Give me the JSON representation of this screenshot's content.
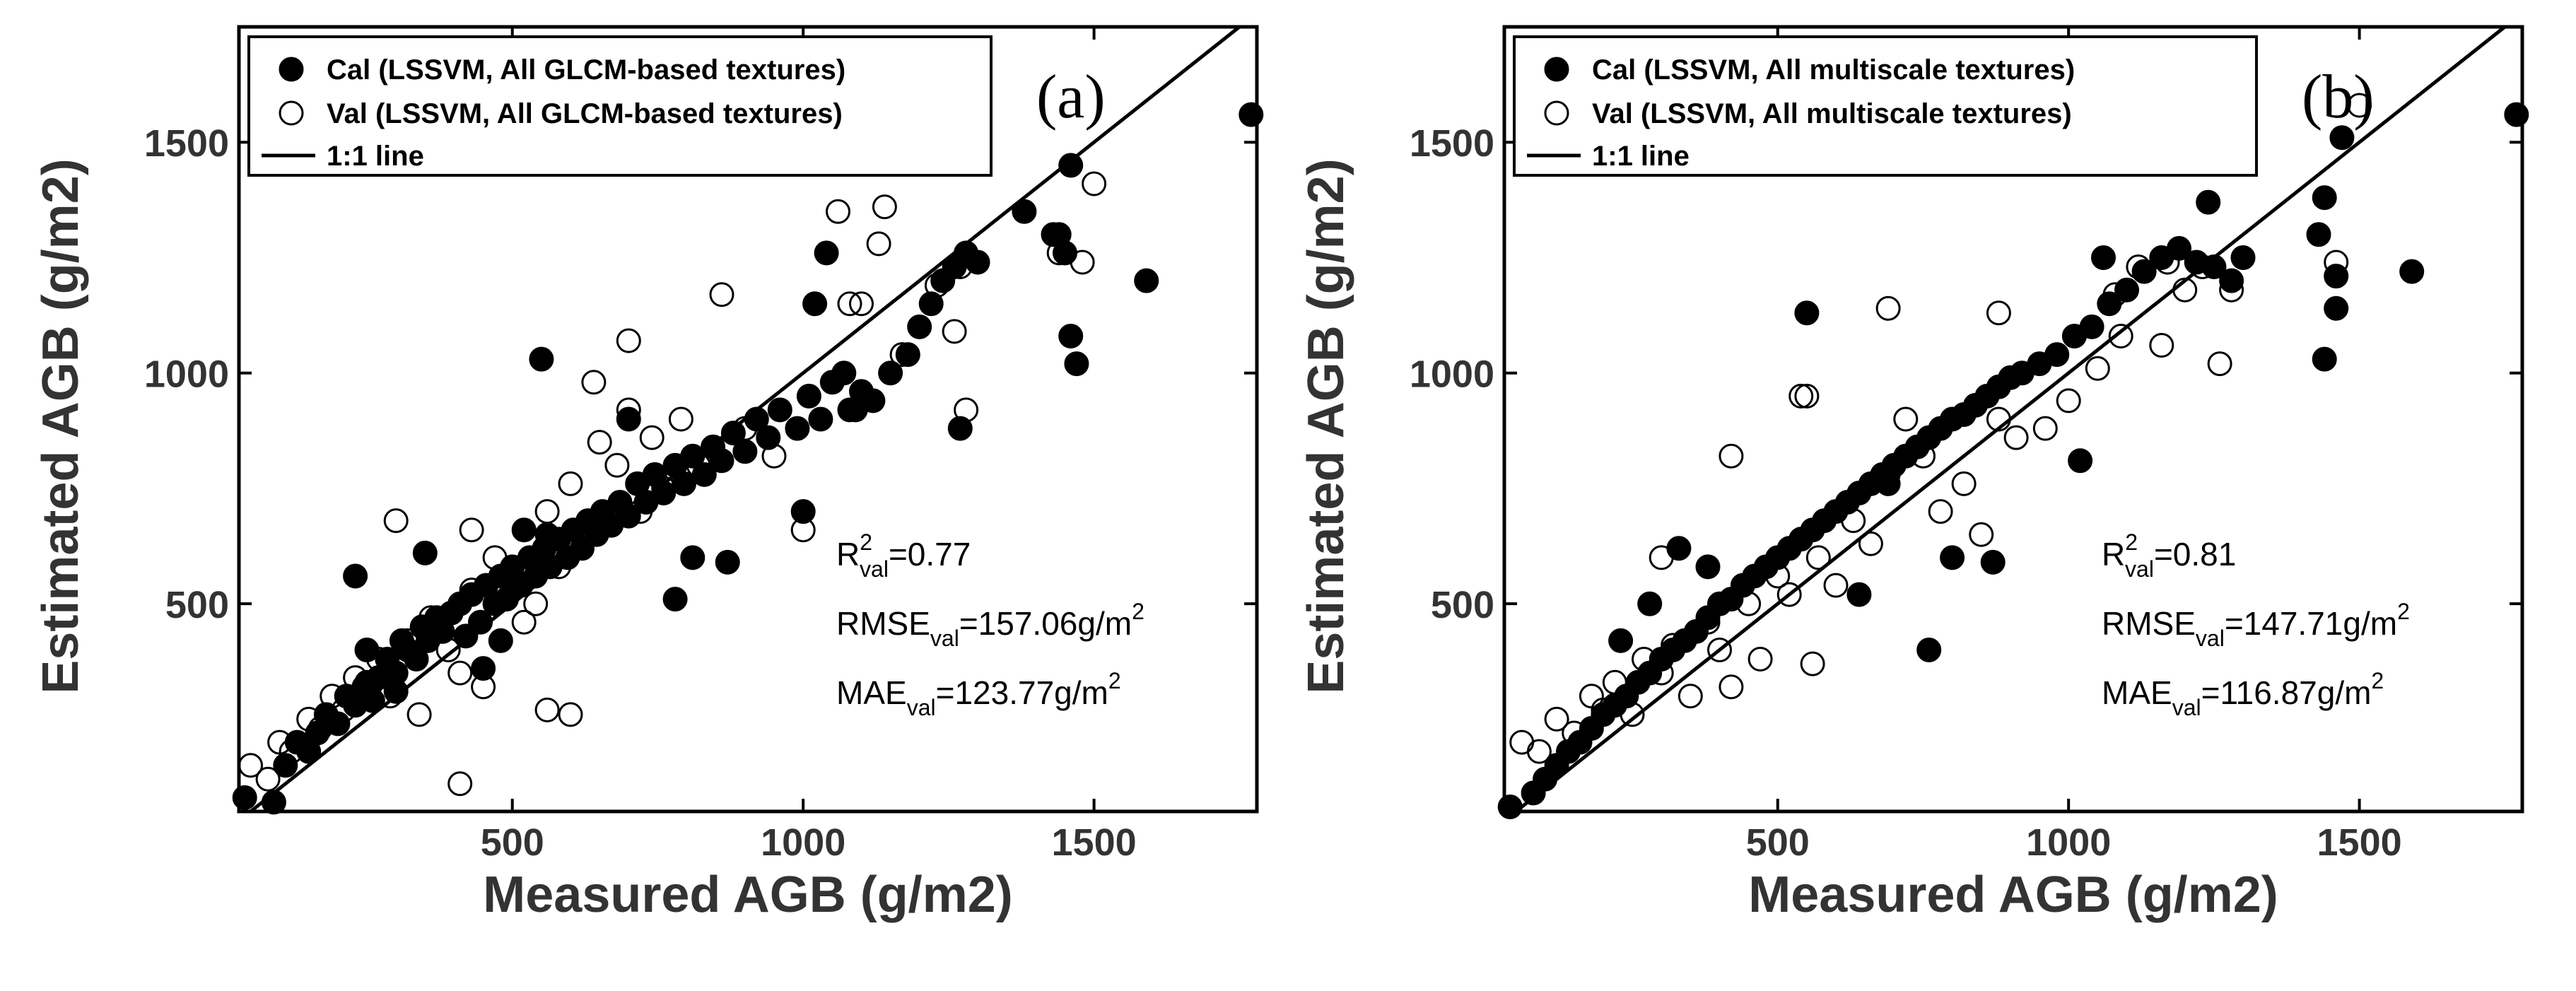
{
  "chart_data": [
    {
      "type": "scatter",
      "panel_label": "(a)",
      "xlabel": "Measured AGB (g/m2)",
      "ylabel": "Estimated AGB (g/m2)",
      "xlim": [
        30,
        1780
      ],
      "ylim": [
        50,
        1750
      ],
      "xticks": [
        "500",
        "1000",
        "1500"
      ],
      "yticks": [
        "500",
        "1000",
        "1500"
      ],
      "legend": {
        "position": "top-left",
        "entries": [
          "Cal (LSSVM, All GLCM-based textures)",
          "Val (LSSVM, All GLCM-based textures)",
          "1:1 line"
        ]
      },
      "stats": {
        "r2_label": "R",
        "r2_value": "=0.77",
        "rmse_label": "RMSE",
        "rmse_value": "=157.06g/m",
        "mae_label": "MAE",
        "mae_value": "=123.77g/m",
        "sub": "val",
        "sup_r": "2",
        "sup_unit": "2"
      },
      "series": [
        {
          "name": "Cal",
          "marker": "filled",
          "x": [
            40,
            90,
            110,
            130,
            150,
            165,
            180,
            200,
            215,
            230,
            245,
            260,
            270,
            285,
            300,
            310,
            320,
            335,
            345,
            355,
            370,
            380,
            395,
            410,
            420,
            430,
            445,
            455,
            470,
            480,
            490,
            500,
            515,
            530,
            540,
            555,
            565,
            580,
            595,
            605,
            620,
            630,
            645,
            655,
            670,
            685,
            700,
            715,
            730,
            745,
            760,
            780,
            795,
            810,
            830,
            845,
            860,
            880,
            900,
            920,
            940,
            960,
            990,
            1010,
            1030,
            1050,
            1080,
            1100,
            1120,
            1150,
            1180,
            1200,
            1220,
            1240,
            1260,
            1280,
            1300,
            1430,
            1450,
            1460,
            1470,
            1590,
            1770,
            250,
            230,
            300,
            350,
            250,
            450,
            480,
            520,
            550,
            560,
            700,
            780,
            810,
            870,
            1000,
            1020,
            1040,
            1070,
            1090,
            1270,
            1380,
            1440,
            1460
          ],
          "y": [
            80,
            70,
            150,
            200,
            180,
            220,
            260,
            240,
            300,
            280,
            320,
            290,
            340,
            380,
            350,
            420,
            400,
            380,
            450,
            420,
            470,
            440,
            480,
            500,
            430,
            520,
            460,
            540,
            500,
            560,
            510,
            580,
            540,
            600,
            560,
            620,
            580,
            640,
            600,
            660,
            620,
            680,
            650,
            700,
            670,
            720,
            690,
            760,
            720,
            780,
            740,
            800,
            760,
            820,
            780,
            840,
            810,
            870,
            830,
            900,
            860,
            920,
            880,
            950,
            900,
            980,
            920,
            960,
            940,
            1000,
            1040,
            1100,
            1150,
            1200,
            1230,
            1260,
            1240,
            1300,
            1260,
            1080,
            1020,
            1200,
            1560,
            330,
            560,
            310,
            610,
            400,
            360,
            420,
            660,
            1030,
            650,
            900,
            510,
            600,
            590,
            700,
            1150,
            1260,
            1000,
            920,
            880,
            1350,
            1300,
            1450
          ]
        },
        {
          "name": "Val",
          "marker": "open",
          "x": [
            50,
            80,
            100,
            120,
            150,
            170,
            190,
            210,
            230,
            250,
            270,
            290,
            320,
            340,
            360,
            390,
            410,
            430,
            450,
            470,
            500,
            520,
            540,
            560,
            580,
            600,
            620,
            650,
            680,
            700,
            720,
            740,
            760,
            790,
            820,
            860,
            900,
            950,
            1000,
            1060,
            1100,
            1140,
            1170,
            1230,
            1260,
            1280,
            1440,
            1480,
            1500,
            300,
            410,
            560,
            600,
            640,
            700,
            1080,
            1130,
            1270,
            430
          ],
          "y": [
            150,
            120,
            200,
            180,
            250,
            230,
            300,
            270,
            340,
            320,
            380,
            300,
            420,
            260,
            470,
            400,
            350,
            530,
            320,
            600,
            560,
            460,
            500,
            700,
            580,
            760,
            650,
            850,
            800,
            920,
            700,
            860,
            750,
            900,
            800,
            1170,
            880,
            820,
            660,
            1350,
            1150,
            1360,
            1040,
            1190,
            1090,
            920,
            1260,
            1240,
            1410,
            680,
            110,
            270,
            260,
            980,
            1070,
            1150,
            1280,
            1230,
            660
          ]
        }
      ]
    },
    {
      "type": "scatter",
      "panel_label": "(b)",
      "xlabel": "Measured AGB (g/m2)",
      "ylabel": "Estimated AGB (g/m2)",
      "xlim": [
        30,
        1780
      ],
      "ylim": [
        50,
        1750
      ],
      "xticks": [
        "500",
        "1000",
        "1500"
      ],
      "yticks": [
        "500",
        "1000",
        "1500"
      ],
      "legend": {
        "position": "top-left",
        "entries": [
          "Cal (LSSVM, All multiscale textures)",
          "Val (LSSVM, All multiscale textures)",
          "1:1 line"
        ]
      },
      "stats": {
        "r2_label": "R",
        "r2_value": "=0.81",
        "rmse_label": "RMSE",
        "rmse_value": "=147.71g/m",
        "mae_label": "MAE",
        "mae_value": "=116.87g/m",
        "sub": "val",
        "sup_r": "2",
        "sup_unit": "2"
      },
      "series": [
        {
          "name": "Cal",
          "marker": "filled",
          "x": [
            40,
            80,
            100,
            120,
            140,
            160,
            180,
            200,
            220,
            240,
            260,
            280,
            300,
            320,
            340,
            360,
            380,
            400,
            420,
            440,
            460,
            480,
            500,
            520,
            540,
            560,
            580,
            600,
            620,
            640,
            660,
            680,
            700,
            720,
            740,
            760,
            780,
            800,
            820,
            840,
            860,
            880,
            900,
            920,
            950,
            980,
            1010,
            1040,
            1070,
            1100,
            1130,
            1160,
            1190,
            1220,
            1250,
            1280,
            1300,
            1430,
            1440,
            1460,
            1470,
            1590,
            1770,
            230,
            280,
            330,
            380,
            550,
            640,
            690,
            760,
            800,
            870,
            1020,
            1060,
            1240,
            1440,
            1460
          ],
          "y": [
            60,
            90,
            120,
            150,
            180,
            200,
            230,
            260,
            280,
            300,
            330,
            350,
            380,
            400,
            420,
            440,
            470,
            500,
            510,
            540,
            560,
            580,
            600,
            620,
            640,
            660,
            680,
            700,
            720,
            740,
            760,
            780,
            800,
            820,
            840,
            860,
            880,
            900,
            910,
            930,
            950,
            970,
            990,
            1000,
            1020,
            1040,
            1080,
            1100,
            1150,
            1180,
            1220,
            1250,
            1270,
            1240,
            1230,
            1200,
            1250,
            1300,
            1380,
            1210,
            1510,
            1220,
            1560,
            420,
            500,
            620,
            580,
            1130,
            520,
            760,
            400,
            600,
            590,
            810,
            1250,
            1370,
            1030,
            1140
          ]
        },
        {
          "name": "Val",
          "marker": "open",
          "x": [
            60,
            90,
            120,
            150,
            180,
            200,
            220,
            250,
            270,
            300,
            320,
            350,
            380,
            400,
            420,
            450,
            470,
            500,
            520,
            550,
            570,
            600,
            630,
            660,
            690,
            720,
            750,
            780,
            820,
            850,
            880,
            910,
            960,
            1000,
            1050,
            1090,
            1120,
            1170,
            1200,
            1230,
            1260,
            1280,
            1460,
            1500,
            300,
            420,
            540,
            560,
            690,
            880,
            1080,
            1160
          ],
          "y": [
            200,
            180,
            250,
            220,
            300,
            270,
            330,
            260,
            380,
            350,
            410,
            300,
            460,
            400,
            320,
            500,
            380,
            560,
            520,
            950,
            600,
            540,
            680,
            630,
            780,
            900,
            820,
            700,
            760,
            650,
            900,
            860,
            880,
            940,
            1010,
            1080,
            1230,
            1240,
            1180,
            1230,
            1020,
            1180,
            1240,
            1580,
            600,
            820,
            950,
            370,
            1140,
            1130,
            1170,
            1060
          ]
        }
      ]
    }
  ]
}
